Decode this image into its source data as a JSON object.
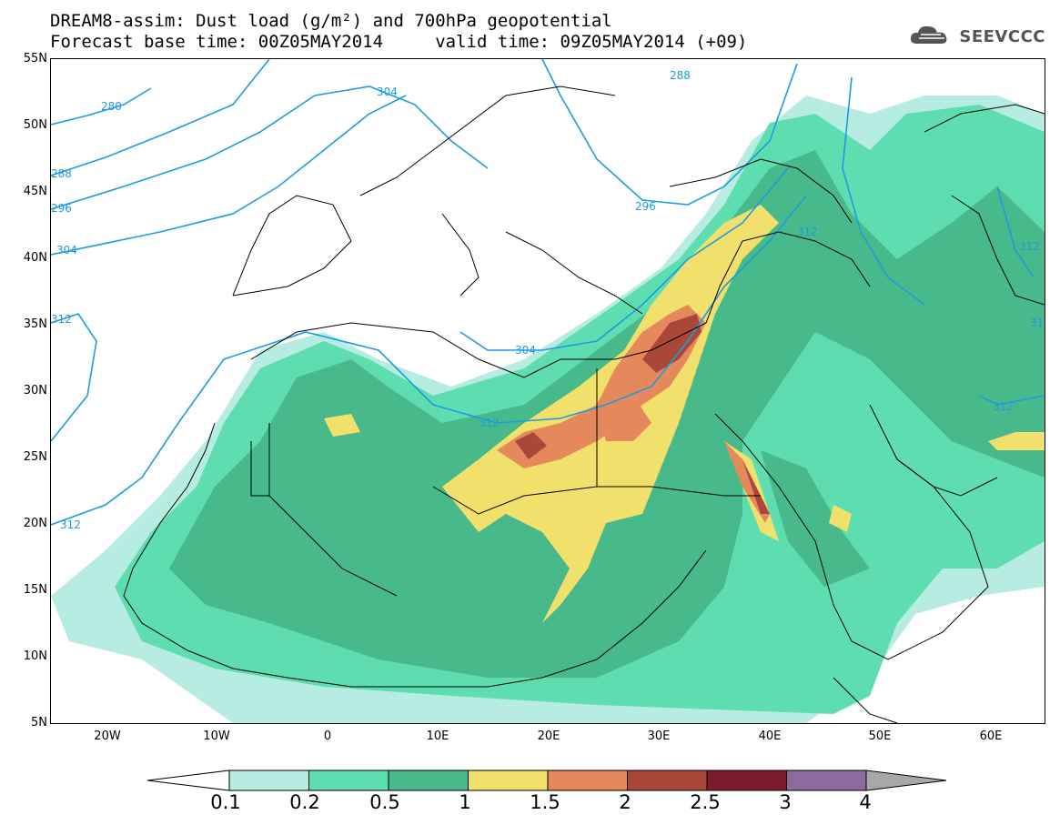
{
  "header": {
    "title_line1": "DREAM8-assim: Dust load (g/m²) and 700hPa geopotential",
    "title_line2": "Forecast base time: 00Z05MAY2014     valid time: 09Z05MAY2014 (+09)",
    "logo_text": "SEEVCCC",
    "logo_icon": "cloud-icon"
  },
  "axes": {
    "lat_labels": [
      "55N",
      "50N",
      "45N",
      "40N",
      "35N",
      "30N",
      "25N",
      "20N",
      "15N",
      "10N",
      "5N"
    ],
    "lon_labels": [
      "20W",
      "10W",
      "0",
      "10E",
      "20E",
      "30E",
      "40E",
      "50E",
      "60E"
    ]
  },
  "contour_labels": [
    "280",
    "288",
    "296",
    "304",
    "304",
    "288",
    "296",
    "312",
    "304",
    "312",
    "312",
    "312",
    "312",
    "312",
    "31"
  ],
  "colorbar": {
    "labels": [
      "0.1",
      "0.2",
      "0.5",
      "1",
      "1.5",
      "2",
      "2.5",
      "3",
      "4"
    ],
    "colors": [
      "#b6ece2",
      "#5dddb0",
      "#48b98a",
      "#f1e06b",
      "#e5895c",
      "#a9473a",
      "#7c1b2b",
      "#8c6aa0"
    ],
    "below_color": "#ffffff",
    "above_color": "#a8a8a8"
  },
  "palette": {
    "contour_line": "#1f9be0",
    "coastline": "#000000"
  }
}
